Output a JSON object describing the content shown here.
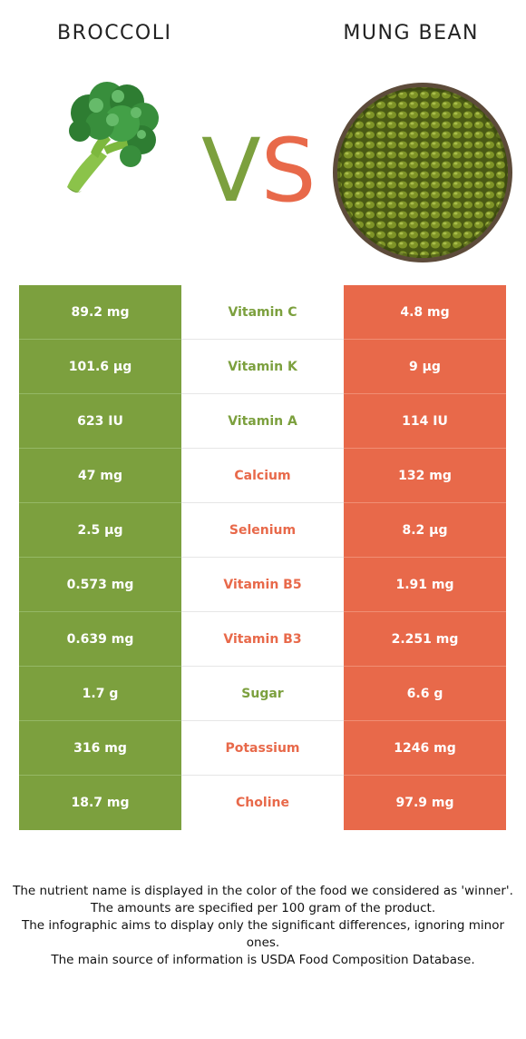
{
  "header": {
    "left_food": "BROCCOLI",
    "right_food": "MUNG BEAN",
    "vs_v": "V",
    "vs_s": "S"
  },
  "colors": {
    "broccoli": "#7ca03e",
    "mung_bean": "#e8694a"
  },
  "images": {
    "left": "broccoli-icon",
    "right": "mung-bean-bowl-icon"
  },
  "rows": [
    {
      "left": "89.2 mg",
      "nutrient": "Vitamin C",
      "right": "4.8 mg",
      "winner": "left"
    },
    {
      "left": "101.6 µg",
      "nutrient": "Vitamin K",
      "right": "9 µg",
      "winner": "left"
    },
    {
      "left": "623 IU",
      "nutrient": "Vitamin A",
      "right": "114 IU",
      "winner": "left"
    },
    {
      "left": "47 mg",
      "nutrient": "Calcium",
      "right": "132 mg",
      "winner": "right"
    },
    {
      "left": "2.5 µg",
      "nutrient": "Selenium",
      "right": "8.2 µg",
      "winner": "right"
    },
    {
      "left": "0.573 mg",
      "nutrient": "Vitamin B5",
      "right": "1.91 mg",
      "winner": "right"
    },
    {
      "left": "0.639 mg",
      "nutrient": "Vitamin B3",
      "right": "2.251 mg",
      "winner": "right"
    },
    {
      "left": "1.7 g",
      "nutrient": "Sugar",
      "right": "6.6 g",
      "winner": "left"
    },
    {
      "left": "316 mg",
      "nutrient": "Potassium",
      "right": "1246 mg",
      "winner": "right"
    },
    {
      "left": "18.7 mg",
      "nutrient": "Choline",
      "right": "97.9 mg",
      "winner": "right"
    }
  ],
  "footnote": [
    "The nutrient name is displayed in the color of the food we considered as 'winner'.",
    "The amounts are specified per 100 gram of the product.",
    "The infographic aims to display only the significant differences, ignoring minor ones.",
    "The main source of information is USDA Food Composition Database."
  ]
}
